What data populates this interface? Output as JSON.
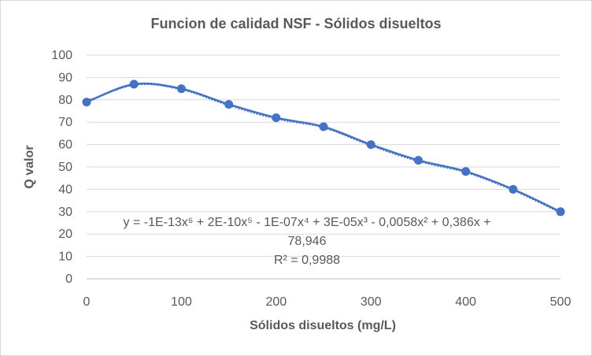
{
  "chart_data": {
    "type": "scatter",
    "title": "Funcion de calidad NSF - Sólidos disueltos",
    "xlabel": "Sólidos disueltos (mg/L)",
    "ylabel": "Q valor",
    "xlim": [
      0,
      500
    ],
    "ylim": [
      0,
      100
    ],
    "x_ticks": [
      "0",
      "100",
      "200",
      "300",
      "400",
      "500"
    ],
    "y_ticks": [
      "0",
      "10",
      "20",
      "30",
      "40",
      "50",
      "60",
      "70",
      "80",
      "90",
      "100"
    ],
    "grid": "horizontal",
    "series": [
      {
        "x": [
          0,
          50,
          100,
          150,
          200,
          250,
          300,
          350,
          400,
          450,
          500
        ],
        "y": [
          79,
          87,
          85,
          78,
          72,
          68,
          60,
          53,
          48,
          40,
          30
        ],
        "color": "#4472c4",
        "style": "smoothed line with markers"
      }
    ],
    "trendline": {
      "type": "polynomial",
      "order": 6,
      "style": "dotted",
      "color": "#4472c4",
      "equation_lines": [
        "y = -1E-13x⁶ + 2E-10x⁵ - 1E-07x⁴ + 3E-05x³ - 0,0058x² + 0,386x +",
        "78,946"
      ],
      "r_squared_label": "R² = 0,9988"
    }
  }
}
